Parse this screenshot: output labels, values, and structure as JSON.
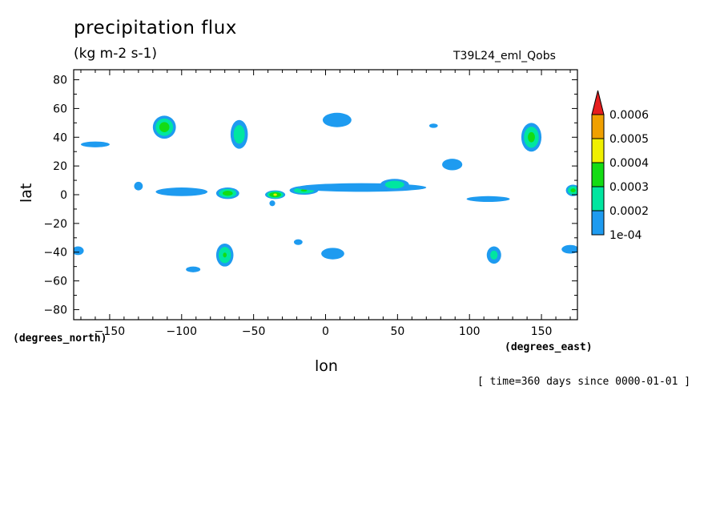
{
  "chart_data": {
    "type": "contour-map",
    "title": "precipitation flux",
    "units": "(kg m-2 s-1)",
    "run_label": "T39L24_eml_Qobs",
    "xlabel": "lon",
    "ylabel": "lat",
    "x_units": "(degrees_east)",
    "y_units": "(degrees_north)",
    "time_note": "[ time=360 days since 0000-01-01 ]",
    "xlim": [
      -175,
      175
    ],
    "ylim": [
      -87,
      87
    ],
    "x_ticks": [
      -150,
      -100,
      -50,
      0,
      50,
      100,
      150
    ],
    "y_ticks": [
      80,
      60,
      40,
      20,
      0,
      -20,
      -40,
      -60,
      -80
    ],
    "levels": [
      0.0001,
      0.0002,
      0.0003,
      0.0004,
      0.0005,
      0.0006
    ],
    "colorbar_labels": [
      "0.0006",
      "0.0005",
      "0.0004",
      "0.0003",
      "0.0002",
      "1e-04"
    ],
    "colors": [
      "#1e9bf0",
      "#00e6a0",
      "#14dc14",
      "#f0f000",
      "#f0a000",
      "#e61e1e"
    ],
    "regions": [
      {
        "lon": -112,
        "lat": 47,
        "rx": 8,
        "ry": 8,
        "peak": 0.00035
      },
      {
        "lon": -60,
        "lat": 42,
        "rx": 6,
        "ry": 10,
        "peak": 0.00028
      },
      {
        "lon": 8,
        "lat": 52,
        "rx": 10,
        "ry": 5,
        "peak": 0.00018
      },
      {
        "lon": 143,
        "lat": 40,
        "rx": 7,
        "ry": 10,
        "peak": 0.00033
      },
      {
        "lon": -160,
        "lat": 35,
        "rx": 10,
        "ry": 2,
        "peak": 0.00016
      },
      {
        "lon": -100,
        "lat": 2,
        "rx": 18,
        "ry": 3,
        "peak": 0.00018
      },
      {
        "lon": -68,
        "lat": 1,
        "rx": 8,
        "ry": 4,
        "peak": 0.00035
      },
      {
        "lon": -35,
        "lat": 0,
        "rx": 7,
        "ry": 3,
        "peak": 0.00041
      },
      {
        "lon": -15,
        "lat": 3,
        "rx": 10,
        "ry": 3,
        "peak": 0.00031
      },
      {
        "lon": 25,
        "lat": 5,
        "rx": 45,
        "ry": 3,
        "peak": 0.00019
      },
      {
        "lon": 48,
        "lat": 7,
        "rx": 10,
        "ry": 4,
        "peak": 0.00029
      },
      {
        "lon": 88,
        "lat": 21,
        "rx": 7,
        "ry": 4,
        "peak": 0.00019
      },
      {
        "lon": 113,
        "lat": -3,
        "rx": 15,
        "ry": 2,
        "peak": 0.00016
      },
      {
        "lon": 172,
        "lat": 3,
        "rx": 5,
        "ry": 4,
        "peak": 0.00033
      },
      {
        "lon": -70,
        "lat": -42,
        "rx": 6,
        "ry": 8,
        "peak": 0.00031
      },
      {
        "lon": -92,
        "lat": -52,
        "rx": 5,
        "ry": 2,
        "peak": 0.00016
      },
      {
        "lon": 5,
        "lat": -41,
        "rx": 8,
        "ry": 4,
        "peak": 0.00017
      },
      {
        "lon": 117,
        "lat": -42,
        "rx": 5,
        "ry": 6,
        "peak": 0.00024
      },
      {
        "lon": -172,
        "lat": -39,
        "rx": 4,
        "ry": 3,
        "peak": 0.00016
      },
      {
        "lon": 170,
        "lat": -38,
        "rx": 6,
        "ry": 3,
        "peak": 0.00015
      },
      {
        "lon": -130,
        "lat": 6,
        "rx": 3,
        "ry": 3,
        "peak": 0.00015
      },
      {
        "lon": -19,
        "lat": -33,
        "rx": 3,
        "ry": 2,
        "peak": 0.00014
      },
      {
        "lon": 75,
        "lat": 48,
        "rx": 3,
        "ry": 1.5,
        "peak": 0.00013
      },
      {
        "lon": -37,
        "lat": -6,
        "rx": 2,
        "ry": 2,
        "peak": 0.00013
      }
    ]
  }
}
